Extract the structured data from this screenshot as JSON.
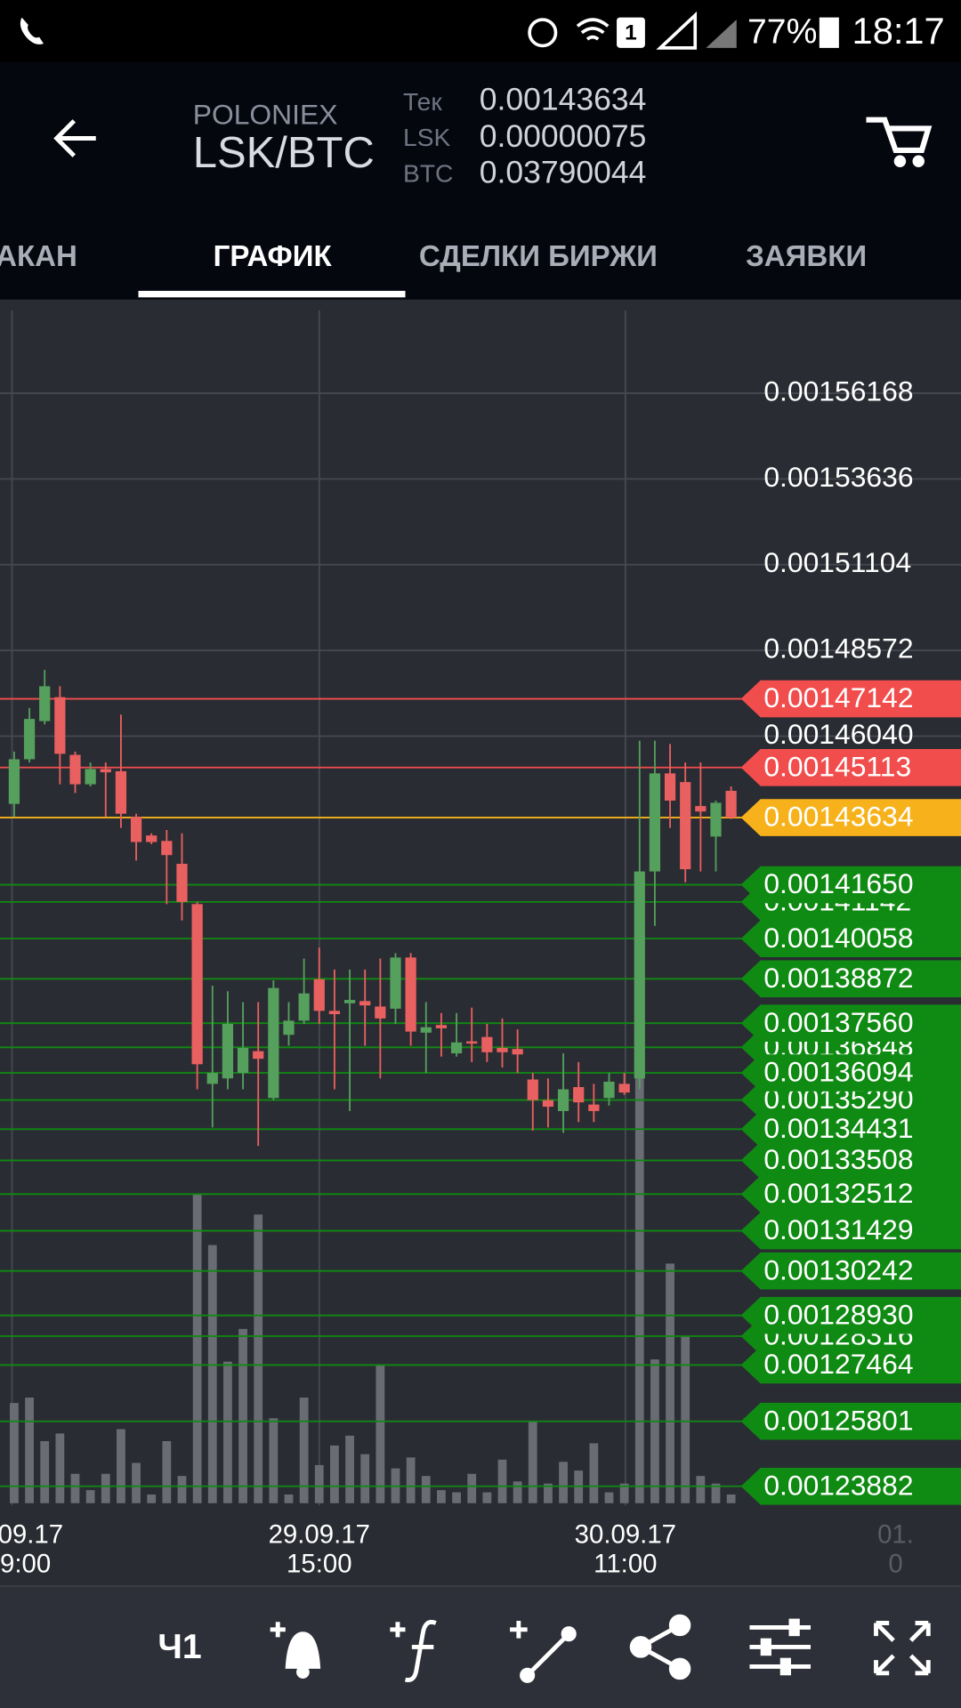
{
  "status_bar": {
    "sim": "1",
    "battery": "77%",
    "time": "18:17"
  },
  "header": {
    "exchange": "POLONIEX",
    "pair": "LSK/BTC",
    "rows": [
      {
        "label": "Тек",
        "value": "0.00143634"
      },
      {
        "label": "LSK",
        "value": "0.00000075"
      },
      {
        "label": "BTC",
        "value": "0.03790044"
      }
    ]
  },
  "tabs": {
    "items": [
      "АКАН",
      "ГРАФИК",
      "СДЕЛКИ БИРЖИ",
      "ЗАЯВКИ"
    ],
    "active": 1
  },
  "chart": {
    "type": "candlestick",
    "ylim": [
      0.00123382,
      0.00158613
    ],
    "yticks": [
      0.00156168,
      0.00153636,
      0.00151104,
      0.00148572,
      {
        "value": 0.0014604,
        "label": "0.00146040"
      }
    ],
    "up_color": "#55a05c",
    "down_color": "#e8605f",
    "volume_color": "#696c73",
    "volume_ylim": [
      0,
      1095
    ],
    "candles": {
      "open": [
        0.00144038,
        0.00145357,
        0.00146483,
        0.00147191,
        0.00145486,
        0.00144617,
        0.00145068,
        0.00145003,
        0.00143652,
        0.00143105,
        0.00142944,
        0.00142268,
        0.00141078,
        0.00135769,
        0.0013593,
        0.00136091,
        0.00136734,
        0.00135351,
        0.00137217,
        0.00137635,
        0.00138858,
        0.00137925,
        0.0013815,
        0.00138214,
        0.00138053,
        0.00137989,
        0.00139501,
        0.00137281,
        0.00137506,
        0.0013667,
        0.00137024,
        0.00137153,
        0.00136831,
        0.00136799,
        0.00135898,
        0.00135286,
        0.00134965,
        0.00135673,
        0.00135158,
        0.00135351,
        0.00135769,
        0.0013593,
        0.00142043,
        0.00144939,
        0.00144682,
        0.00143974,
        0.00143073,
        0.00144424
      ],
      "high": [
        0.00145582,
        0.00146869,
        0.00147996,
        0.00147513,
        0.00145582,
        0.00145261,
        0.00145261,
        0.00146676,
        0.00143748,
        0.00143169,
        0.00143266,
        0.00143169,
        0.00141142,
        0.00138665,
        0.00138504,
        0.00138182,
        0.00138182,
        0.00138826,
        0.00138182,
        0.00139469,
        0.00139791,
        0.00139147,
        0.00139147,
        0.00139147,
        0.00139469,
        0.0013963,
        0.0013963,
        0.00138182,
        0.0013786,
        0.0013786,
        0.00138021,
        0.00137539,
        0.001377,
        0.00137378,
        0.00136091,
        0.0013593,
        0.0013667,
        0.00136413,
        0.00135769,
        0.00136091,
        0.00136091,
        0.00145904,
        0.00145904,
        0.00145808,
        0.00145261,
        0.00145261,
        0.00144135,
        0.00144553
      ],
      "low": [
        0.00143652,
        0.00145261,
        0.00146387,
        0.00144617,
        0.0014436,
        0.00144553,
        0.00143652,
        0.0014333,
        0.00142365,
        0.00142848,
        0.00141078,
        0.00140595,
        0.00135608,
        0.00134482,
        0.00135608,
        0.00135608,
        0.00133935,
        0.00135286,
        0.00136895,
        0.00137539,
        0.00137539,
        0.00135608,
        0.00134965,
        0.00136895,
        0.0013593,
        0.00137539,
        0.00136895,
        0.00136091,
        0.00136573,
        0.00136573,
        0.00136413,
        0.00136413,
        0.00136252,
        0.00136091,
        0.00134386,
        0.00134482,
        0.00134321,
        0.00134643,
        0.00134643,
        0.00135126,
        0.00135447,
        0.00135608,
        0.00140434,
        0.0014333,
        0.00141721,
        0.00142043,
        0.00142043,
        0.00143588
      ],
      "close": [
        0.00145357,
        0.00146548,
        0.00147513,
        0.00145518,
        0.00144617,
        0.00145068,
        0.00144971,
        0.00143748,
        0.00142912,
        0.00142912,
        0.00142526,
        0.00141142,
        0.00136348,
        0.00136091,
        0.00137539,
        0.00136831,
        0.00136509,
        0.001386,
        0.00137635,
        0.0013844,
        0.00137925,
        0.00137828,
        0.00138247,
        0.00138086,
        0.001377,
        0.00139501,
        0.00137313,
        0.00137442,
        0.0013741,
        0.00136992,
        0.0013696,
        0.00136702,
        0.00136702,
        0.00136638,
        0.00135286,
        0.00135093,
        0.00135608,
        0.00135222,
        0.00134965,
        0.00135833,
        0.00135512,
        0.00142043,
        0.00144939,
        0.00144135,
        0.00142108,
        0.00143813,
        0.0014407,
        0.00143634
      ]
    },
    "volume": [
      92,
      97,
      57,
      64,
      27,
      12,
      27,
      68,
      37,
      8,
      57,
      25,
      284,
      237,
      130,
      160,
      265,
      78,
      8,
      97,
      35,
      53,
      62,
      45,
      127,
      32,
      42,
      25,
      12,
      10,
      27,
      10,
      40,
      20,
      75,
      18,
      38,
      30,
      55,
      10,
      18,
      395,
      132,
      220,
      153,
      25,
      18,
      8
    ],
    "x_labels": [
      {
        "date": "09.17",
        "time": "9:00"
      },
      {
        "date": "29.09.17",
        "time": "15:00"
      },
      {
        "date": "30.09.17",
        "time": "11:00"
      },
      {
        "date": "01.",
        "time": "0"
      }
    ],
    "price_lines": [
      {
        "value": 0.00141142,
        "label": "0.00141142",
        "color": "#0f8a12"
      },
      {
        "value": 0.00136848,
        "label": "0.00136848",
        "color": "#0f8a12"
      },
      {
        "value": 0.0013529,
        "label": "0.00135290",
        "color": "#0f8a12"
      },
      {
        "value": 0.00128316,
        "label": "0.00128316",
        "color": "#0f8a12"
      },
      {
        "value": 0.00147142,
        "label": "0.00147142",
        "color": "#f24d4d"
      },
      {
        "value": 0.00145113,
        "label": "0.00145113",
        "color": "#f24d4d"
      },
      {
        "value": 0.00143634,
        "label": "0.00143634",
        "color": "#f7b21b"
      },
      {
        "value": 0.0014165,
        "label": "0.00141650",
        "color": "#0f8a12"
      },
      {
        "value": 0.00140058,
        "label": "0.00140058",
        "color": "#0f8a12"
      },
      {
        "value": 0.00138872,
        "label": "0.00138872",
        "color": "#0f8a12"
      },
      {
        "value": 0.0013756,
        "label": "0.00137560",
        "color": "#0f8a12"
      },
      {
        "value": 0.00136094,
        "label": "0.00136094",
        "color": "#0f8a12"
      },
      {
        "value": 0.00134431,
        "label": "0.00134431",
        "color": "#0f8a12"
      },
      {
        "value": 0.00133508,
        "label": "0.00133508",
        "color": "#0f8a12"
      },
      {
        "value": 0.00132512,
        "label": "0.00132512",
        "color": "#0f8a12"
      },
      {
        "value": 0.00131429,
        "label": "0.00131429",
        "color": "#0f8a12"
      },
      {
        "value": 0.00130242,
        "label": "0.00130242",
        "color": "#0f8a12"
      },
      {
        "value": 0.0012893,
        "label": "0.00128930",
        "color": "#0f8a12"
      },
      {
        "value": 0.00127464,
        "label": "0.00127464",
        "color": "#0f8a12"
      },
      {
        "value": 0.00125801,
        "label": "0.00125801",
        "color": "#0f8a12"
      },
      {
        "value": 0.00123882,
        "label": "0.00123882",
        "color": "#0f8a12"
      }
    ]
  },
  "toolbar": {
    "period": "Ч1"
  }
}
